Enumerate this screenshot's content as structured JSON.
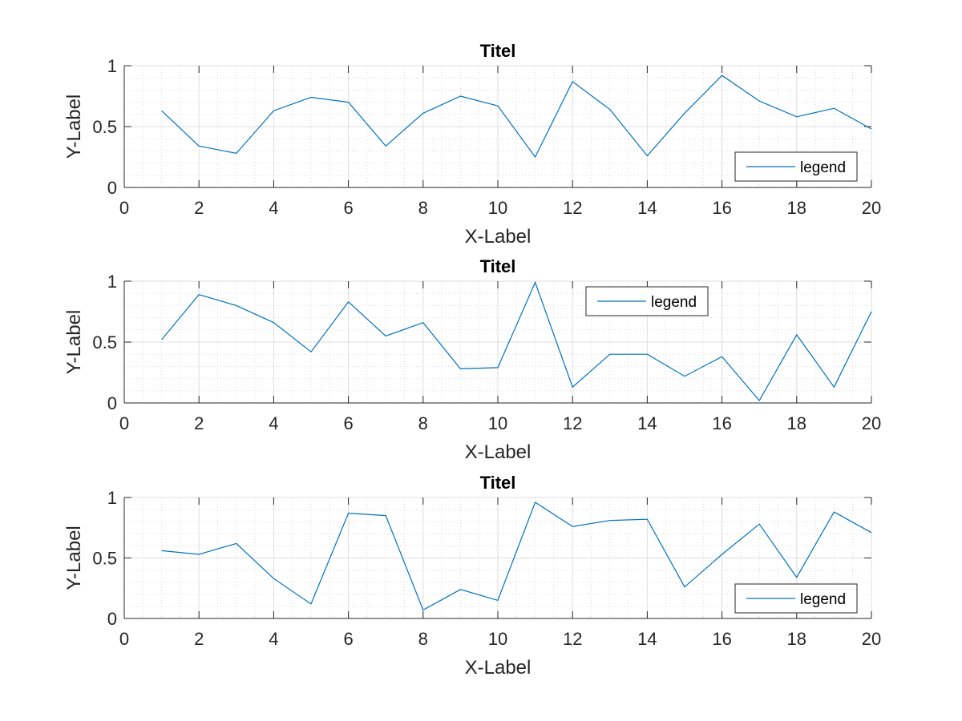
{
  "chart_data": [
    {
      "type": "line",
      "title": "Titel",
      "xlabel": "X-Label",
      "ylabel": "Y-Label",
      "xlim": [
        0,
        20
      ],
      "ylim": [
        0,
        1
      ],
      "xticks": [
        0,
        2,
        4,
        6,
        8,
        10,
        12,
        14,
        16,
        18,
        20
      ],
      "yticks": [
        0,
        0.5,
        1
      ],
      "grid": true,
      "minor_grid": true,
      "legend_position": "bottom-right",
      "color": "#0072BD",
      "series": [
        {
          "name": "legend",
          "x": [
            1,
            2,
            3,
            4,
            5,
            6,
            7,
            8,
            9,
            10,
            11,
            12,
            13,
            14,
            15,
            16,
            17,
            18,
            19,
            20
          ],
          "y": [
            0.63,
            0.34,
            0.28,
            0.63,
            0.74,
            0.7,
            0.34,
            0.61,
            0.75,
            0.67,
            0.25,
            0.87,
            0.64,
            0.26,
            0.61,
            0.92,
            0.71,
            0.58,
            0.65,
            0.48
          ]
        }
      ]
    },
    {
      "type": "line",
      "title": "Titel",
      "xlabel": "X-Label",
      "ylabel": "Y-Label",
      "xlim": [
        0,
        20
      ],
      "ylim": [
        0,
        1
      ],
      "xticks": [
        0,
        2,
        4,
        6,
        8,
        10,
        12,
        14,
        16,
        18,
        20
      ],
      "yticks": [
        0,
        0.5,
        1
      ],
      "grid": true,
      "minor_grid": true,
      "legend_position": "top",
      "color": "#0072BD",
      "series": [
        {
          "name": "legend",
          "x": [
            1,
            2,
            3,
            4,
            5,
            6,
            7,
            8,
            9,
            10,
            11,
            12,
            13,
            14,
            15,
            16,
            17,
            18,
            19,
            20
          ],
          "y": [
            0.52,
            0.89,
            0.8,
            0.66,
            0.42,
            0.83,
            0.55,
            0.66,
            0.28,
            0.29,
            0.99,
            0.13,
            0.4,
            0.4,
            0.22,
            0.38,
            0.02,
            0.56,
            0.13,
            0.75
          ]
        }
      ]
    },
    {
      "type": "line",
      "title": "Titel",
      "xlabel": "X-Label",
      "ylabel": "Y-Label",
      "xlim": [
        0,
        20
      ],
      "ylim": [
        0,
        1
      ],
      "xticks": [
        0,
        2,
        4,
        6,
        8,
        10,
        12,
        14,
        16,
        18,
        20
      ],
      "yticks": [
        0,
        0.5,
        1
      ],
      "grid": true,
      "minor_grid": true,
      "legend_position": "bottom-right",
      "color": "#0072BD",
      "series": [
        {
          "name": "legend",
          "x": [
            1,
            2,
            3,
            4,
            5,
            6,
            7,
            8,
            9,
            10,
            11,
            12,
            13,
            14,
            15,
            16,
            17,
            18,
            19,
            20
          ],
          "y": [
            0.56,
            0.53,
            0.62,
            0.33,
            0.12,
            0.87,
            0.85,
            0.07,
            0.24,
            0.15,
            0.96,
            0.76,
            0.81,
            0.82,
            0.26,
            0.53,
            0.78,
            0.34,
            0.88,
            0.71
          ]
        }
      ]
    }
  ]
}
